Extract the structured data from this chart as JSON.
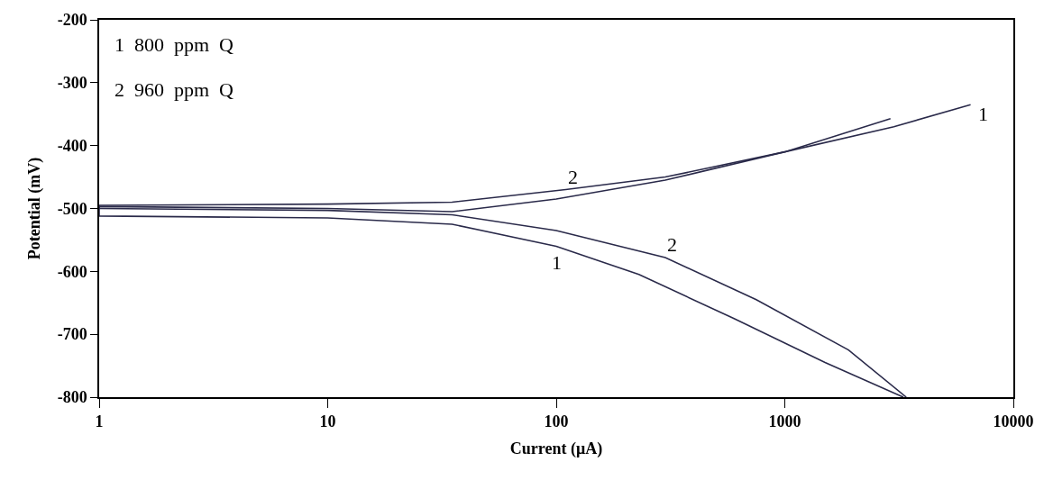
{
  "chart_data": {
    "type": "line",
    "xlabel": "Current (μA)",
    "ylabel": "Potential (mV)",
    "log": "x",
    "xlim": [
      1,
      10000
    ],
    "xticks": [
      1,
      10,
      100,
      1000,
      10000
    ],
    "ylim": [
      -800,
      -200
    ],
    "yticks": [
      -200,
      -300,
      -400,
      -500,
      -600,
      -700,
      -800
    ],
    "marker": "none",
    "line_style": "solid",
    "series": [
      {
        "color": "#2a2a4a",
        "x": [
          3300,
          1500,
          600,
          230,
          100,
          35,
          10,
          1,
          1,
          10,
          35,
          100,
          300,
          1000,
          3000,
          6500
        ],
        "values": [
          -800,
          -745,
          -675,
          -605,
          -560,
          -525,
          -515,
          -512,
          -497,
          -500,
          -505,
          -485,
          -455,
          -410,
          -370,
          -335
        ]
      },
      {
        "color": "#2a2a4a",
        "x": [
          3400,
          1900,
          750,
          300,
          100,
          35,
          10,
          1,
          1,
          10,
          35,
          110,
          300,
          1000,
          2900
        ],
        "values": [
          -800,
          -725,
          -645,
          -578,
          -535,
          -510,
          -503,
          -500,
          -495,
          -493,
          -490,
          -470,
          -450,
          -410,
          -357
        ]
      }
    ],
    "annotations": [
      "1  800  ppm  Q",
      "2  960  ppm  Q",
      {
        "text": "2",
        "x": 110,
        "y": -470
      },
      {
        "text": "2",
        "x": 300,
        "y": -578
      },
      {
        "text": "1",
        "x": 100,
        "y": -560
      },
      {
        "text": "1",
        "x": 6500,
        "y": -335
      }
    ]
  }
}
